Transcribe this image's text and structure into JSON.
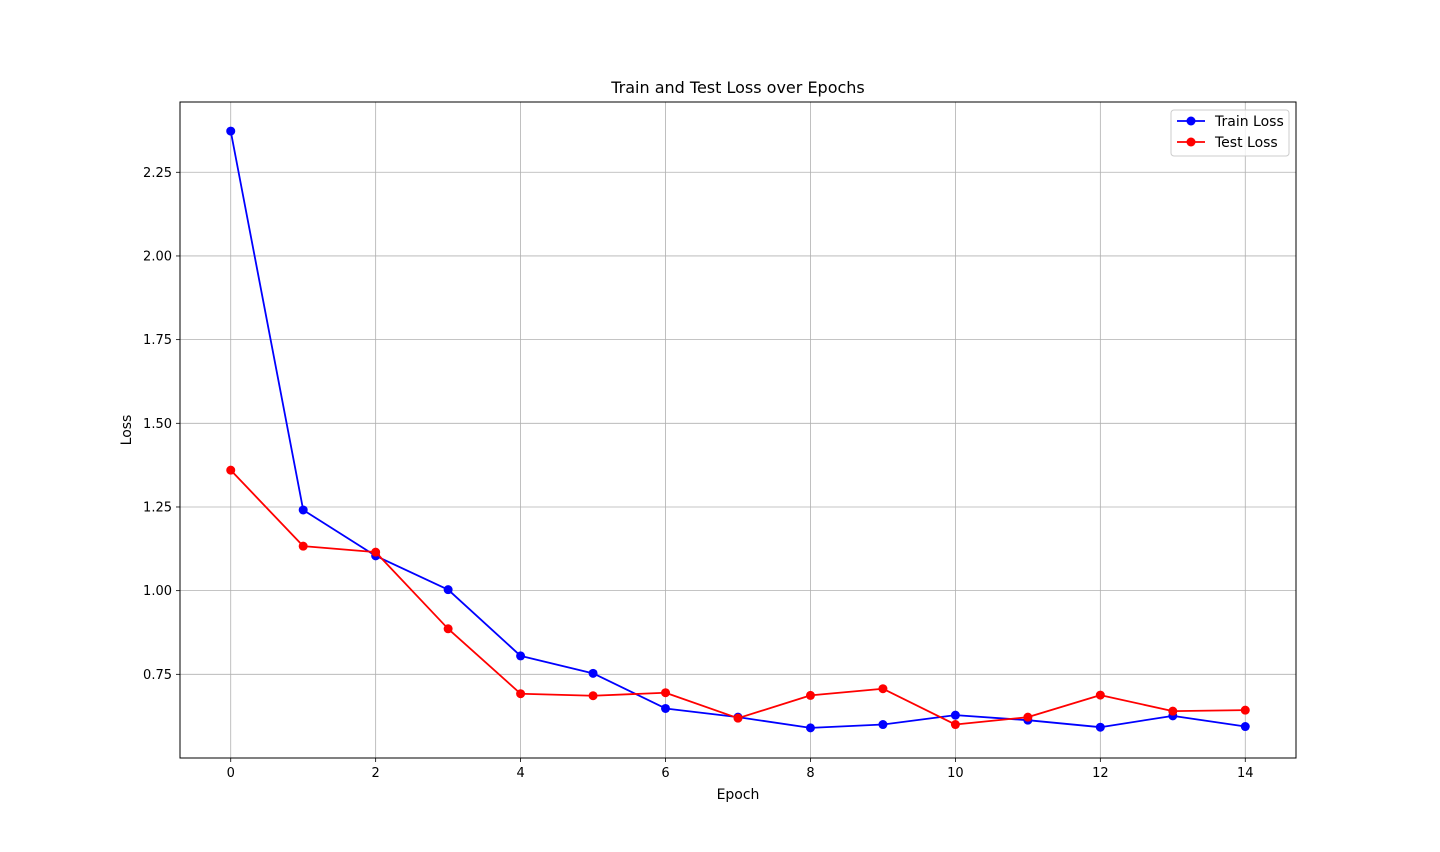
{
  "chart_data": {
    "type": "line",
    "title": "Train and Test Loss over Epochs",
    "xlabel": "Epoch",
    "ylabel": "Loss",
    "x": [
      0,
      1,
      2,
      3,
      4,
      5,
      6,
      7,
      8,
      9,
      10,
      11,
      12,
      13,
      14
    ],
    "xlim": [
      -0.7,
      14.7
    ],
    "ylim": [
      0.5,
      2.46
    ],
    "xticks": [
      0,
      2,
      4,
      6,
      8,
      10,
      12,
      14
    ],
    "yticks": [
      0.75,
      1.0,
      1.25,
      1.5,
      1.75,
      2.0,
      2.25
    ],
    "xtick_labels": [
      "0",
      "2",
      "4",
      "6",
      "8",
      "10",
      "12",
      "14"
    ],
    "ytick_labels": [
      "0.75",
      "1.00",
      "1.25",
      "1.50",
      "1.75",
      "2.00",
      "2.25"
    ],
    "grid": true,
    "legend_position": "top-right",
    "series": [
      {
        "name": "Train Loss",
        "color": "#0000ff",
        "marker": "circle",
        "values": [
          2.373,
          1.241,
          1.104,
          1.003,
          0.805,
          0.753,
          0.648,
          0.622,
          0.59,
          0.6,
          0.628,
          0.613,
          0.592,
          0.626,
          0.594
        ]
      },
      {
        "name": "Test Loss",
        "color": "#ff0000",
        "marker": "circle",
        "values": [
          1.36,
          1.133,
          1.115,
          0.886,
          0.692,
          0.686,
          0.695,
          0.619,
          0.687,
          0.707,
          0.6,
          0.622,
          0.688,
          0.64,
          0.643
        ]
      }
    ]
  }
}
